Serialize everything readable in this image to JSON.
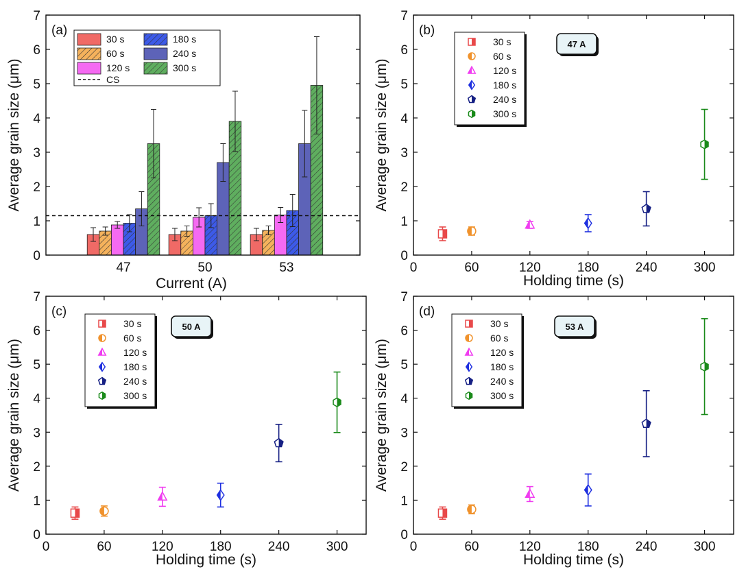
{
  "colors": {
    "30 s": "#e8494a",
    "60 s": "#f0922c",
    "120 s": "#f03cf0",
    "180 s": "#1f30e0",
    "240 s": "#162084",
    "300 s": "#1a8a1a",
    "bar_30 s": "#f06a66",
    "bar_60 s": "#f5b25c",
    "bar_120 s": "#f56af2",
    "bar_180 s": "#3d5ae8",
    "bar_240 s": "#5d63b8",
    "bar_300 s": "#5fae5f"
  },
  "chart_data": [
    {
      "panel": "(a)",
      "type": "bar",
      "xlabel": "Current (A)",
      "ylabel": "Average grain size (μm)",
      "ylim": [
        0,
        7
      ],
      "yticks": [
        "0",
        "1",
        "2",
        "3",
        "4",
        "5",
        "6",
        "7"
      ],
      "categories": [
        "47",
        "50",
        "53"
      ],
      "series": [
        {
          "name": "30 s",
          "pattern": "solid",
          "values": [
            0.6,
            0.6,
            0.6
          ],
          "errors": [
            0.2,
            0.18,
            0.18
          ]
        },
        {
          "name": "60 s",
          "pattern": "hatch",
          "values": [
            0.7,
            0.7,
            0.72
          ],
          "errors": [
            0.12,
            0.15,
            0.13
          ]
        },
        {
          "name": "120 s",
          "pattern": "solid",
          "values": [
            0.88,
            1.1,
            1.17
          ],
          "errors": [
            0.1,
            0.28,
            0.22
          ]
        },
        {
          "name": "180 s",
          "pattern": "hatch",
          "values": [
            0.93,
            1.15,
            1.3
          ],
          "errors": [
            0.25,
            0.35,
            0.47
          ]
        },
        {
          "name": "240 s",
          "pattern": "solid",
          "values": [
            1.35,
            2.7,
            3.25
          ],
          "errors": [
            0.5,
            0.55,
            0.97
          ]
        },
        {
          "name": "300 s",
          "pattern": "hatch",
          "values": [
            3.25,
            3.9,
            4.95
          ],
          "errors": [
            1.0,
            0.88,
            1.42
          ]
        }
      ],
      "reference_line": {
        "label": "CS",
        "value": 1.15
      },
      "legend_position": "top-left"
    },
    {
      "panel": "(b)",
      "type": "scatter",
      "condition": "47 A",
      "xlabel": "Holding time (s)",
      "ylabel": "Average grain size (μm)",
      "xlim": [
        0,
        330
      ],
      "xticks": [
        "0",
        "60",
        "120",
        "180",
        "240",
        "300"
      ],
      "ylim": [
        0,
        7
      ],
      "yticks": [
        "0",
        "1",
        "2",
        "3",
        "4",
        "5",
        "6",
        "7"
      ],
      "points": [
        {
          "name": "30 s",
          "marker": "square",
          "x": 30,
          "y": 0.62,
          "error": 0.2
        },
        {
          "name": "60 s",
          "marker": "circle",
          "x": 60,
          "y": 0.7,
          "error": 0.12
        },
        {
          "name": "120 s",
          "marker": "triangle",
          "x": 120,
          "y": 0.88,
          "error": 0.1
        },
        {
          "name": "180 s",
          "marker": "diamond",
          "x": 180,
          "y": 0.93,
          "error": 0.25
        },
        {
          "name": "240 s",
          "marker": "pentagon",
          "x": 240,
          "y": 1.35,
          "error": 0.5
        },
        {
          "name": "300 s",
          "marker": "hexagon",
          "x": 300,
          "y": 3.23,
          "error": 1.02
        }
      ],
      "legend_position": "top-left"
    },
    {
      "panel": "(c)",
      "type": "scatter",
      "condition": "50 A",
      "xlabel": "Holding time (s)",
      "ylabel": "Average grain size (μm)",
      "xlim": [
        0,
        330
      ],
      "xticks": [
        "0",
        "60",
        "120",
        "180",
        "240",
        "300"
      ],
      "ylim": [
        0,
        7
      ],
      "yticks": [
        "0",
        "1",
        "2",
        "3",
        "4",
        "5",
        "6",
        "7"
      ],
      "points": [
        {
          "name": "30 s",
          "marker": "square",
          "x": 30,
          "y": 0.62,
          "error": 0.18
        },
        {
          "name": "60 s",
          "marker": "circle",
          "x": 60,
          "y": 0.68,
          "error": 0.15
        },
        {
          "name": "120 s",
          "marker": "triangle",
          "x": 120,
          "y": 1.1,
          "error": 0.28
        },
        {
          "name": "180 s",
          "marker": "diamond",
          "x": 180,
          "y": 1.15,
          "error": 0.35
        },
        {
          "name": "240 s",
          "marker": "pentagon",
          "x": 240,
          "y": 2.68,
          "error": 0.55
        },
        {
          "name": "300 s",
          "marker": "hexagon",
          "x": 300,
          "y": 3.88,
          "error": 0.89
        }
      ],
      "legend_position": "top-left"
    },
    {
      "panel": "(d)",
      "type": "scatter",
      "condition": "53 A",
      "xlabel": "Holding time (s)",
      "ylabel": "Average grain size (μm)",
      "xlim": [
        0,
        330
      ],
      "xticks": [
        "0",
        "60",
        "120",
        "180",
        "240",
        "300"
      ],
      "ylim": [
        0,
        7
      ],
      "yticks": [
        "0",
        "1",
        "2",
        "3",
        "4",
        "5",
        "6",
        "7"
      ],
      "points": [
        {
          "name": "30 s",
          "marker": "square",
          "x": 30,
          "y": 0.62,
          "error": 0.18
        },
        {
          "name": "60 s",
          "marker": "circle",
          "x": 60,
          "y": 0.73,
          "error": 0.13
        },
        {
          "name": "120 s",
          "marker": "triangle",
          "x": 120,
          "y": 1.18,
          "error": 0.22
        },
        {
          "name": "180 s",
          "marker": "diamond",
          "x": 180,
          "y": 1.3,
          "error": 0.47
        },
        {
          "name": "240 s",
          "marker": "pentagon",
          "x": 240,
          "y": 3.25,
          "error": 0.97
        },
        {
          "name": "300 s",
          "marker": "hexagon",
          "x": 300,
          "y": 4.93,
          "error": 1.41
        }
      ],
      "legend_position": "top-left"
    }
  ]
}
